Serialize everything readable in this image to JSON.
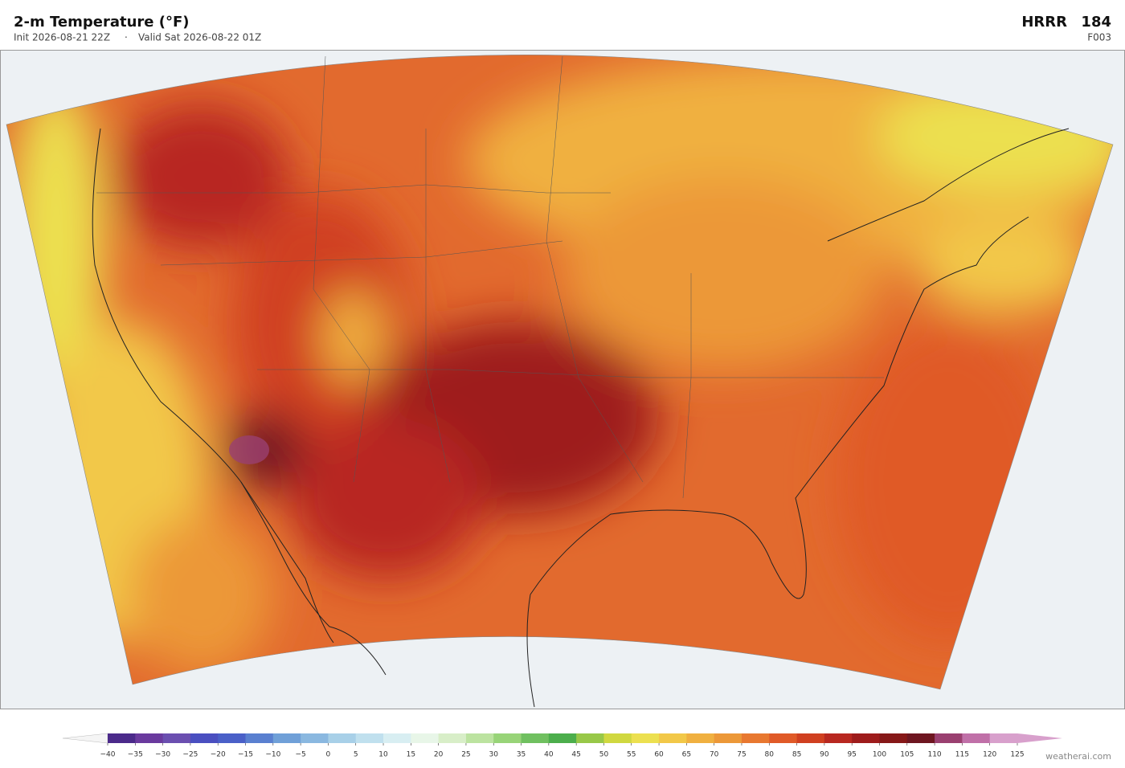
{
  "header": {
    "title": "2-m Temperature  (°F)",
    "init": "Init 2026-08-21 22Z",
    "valid": "Valid Sat 2026-08-22 01Z",
    "model": "HRRR",
    "model_run": "184",
    "forecast_hour": "F003"
  },
  "colorbar": {
    "ticks": [
      {
        "value": -40,
        "label": "−40"
      },
      {
        "value": -35,
        "label": "−35"
      },
      {
        "value": -30,
        "label": "−30"
      },
      {
        "value": -25,
        "label": "−25"
      },
      {
        "value": -20,
        "label": "−20"
      },
      {
        "value": -15,
        "label": "−15"
      },
      {
        "value": -10,
        "label": "−10"
      },
      {
        "value": -5,
        "label": "−5"
      },
      0,
      5,
      10,
      15,
      20,
      25,
      30,
      35,
      40,
      45,
      50,
      55,
      60,
      65,
      70,
      75,
      80,
      85,
      90,
      95,
      100,
      105,
      110,
      115,
      120,
      125
    ],
    "colors": [
      "#4b2a8a",
      "#6a3a9e",
      "#6b4fb0",
      "#4a4fc0",
      "#4a60c8",
      "#5a80d0",
      "#70a0d8",
      "#8ab8e0",
      "#a8d0e8",
      "#c0e0ee",
      "#d8eef2",
      "#e8f6e8",
      "#d8eec8",
      "#bce3a0",
      "#98d478",
      "#70c060",
      "#4cae4c",
      "#98c848",
      "#d0d840",
      "#ece050",
      "#f2c848",
      "#f0b040",
      "#ec9838",
      "#e87830",
      "#e05a28",
      "#d04020",
      "#b82820",
      "#9e1c1c",
      "#861818",
      "#6e1620",
      "#9a4070",
      "#c070a8",
      "#d8a0cc"
    ],
    "under_color": "#f5f5f5",
    "over_color": "#d8a0cc"
  },
  "footer": {
    "watermark": "weatherai.com"
  }
}
